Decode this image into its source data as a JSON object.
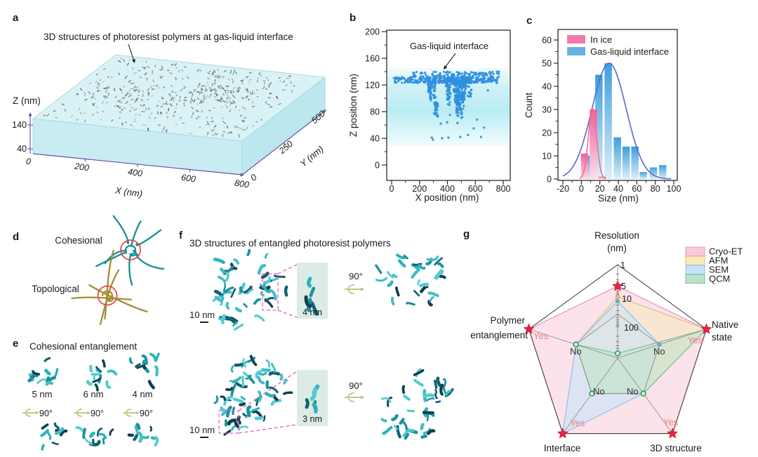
{
  "figure": {
    "panels": {
      "a": {
        "letter": "a",
        "title": "3D structures of photoresist polymers at gas-liquid interface",
        "z_axis": {
          "label": "Z (nm)",
          "ticks": [
            "140",
            "40"
          ]
        },
        "x_axis": {
          "label": "X (nm)",
          "ticks": [
            "0",
            "200",
            "400",
            "600",
            "800"
          ]
        },
        "y_axis": {
          "label": "Y (nm)",
          "ticks": [
            "0",
            "250",
            "500"
          ]
        }
      },
      "b": {
        "letter": "b",
        "annotation": "Gas-liquid interface",
        "x_axis": {
          "label": "X position (nm)"
        },
        "y_axis": {
          "label": "Z position (nm)"
        }
      },
      "c": {
        "letter": "c",
        "x_axis": {
          "label": "Size (nm)"
        },
        "y_axis": {
          "label": "Count"
        }
      },
      "d": {
        "letter": "d",
        "labels": [
          "Cohesional",
          "Topological"
        ]
      },
      "e": {
        "letter": "e",
        "title": "Cohesional entanglement",
        "sizes": [
          "5 nm",
          "6 nm",
          "4 nm"
        ],
        "rotation": "90°"
      },
      "f": {
        "letter": "f",
        "title": "3D structures of entangled photoresist polymers",
        "scale_bars": [
          "10 nm",
          "10 nm"
        ],
        "inset_sizes": [
          "4 nm",
          "3 nm"
        ],
        "rotation": "90°"
      },
      "g": {
        "letter": "g",
        "axis_labels": {
          "resolution_1": "Resolution",
          "resolution_2": "(nm)",
          "native_1": "Native",
          "native_2": "state",
          "structure": "3D structure",
          "interface": "Interface",
          "entangle_1": "Polymer",
          "entangle_2": "entanglement"
        }
      }
    }
  },
  "colors": {
    "scatter_blue": "#2f8fe0",
    "band_cyan": "#b9ecf3",
    "axis_purple": "#6a52a8",
    "slab_top": "#d9f2f6",
    "slab_front": "#c8ecf2",
    "slab_side": "#bde7ee",
    "slab_edge": "#9fd2dd",
    "speck_gray": "#6e6e66",
    "teal": "#1f9097",
    "olive": "#a38e33",
    "red_circle": "#e34b4b",
    "magenta_dash": "#ee59c3",
    "inset_bg": "#dcebe5",
    "rotation_arrow": "#aec877",
    "star_red": "#e8243e",
    "yes_label": "#ea8080",
    "no_label": "#333333"
  },
  "chart_data": [
    {
      "type": "scatter",
      "panel": "b",
      "annotation": "Gas-liquid interface",
      "xlabel": "X position (nm)",
      "ylabel": "Z position (nm)",
      "xlim": [
        0,
        800
      ],
      "ylim": [
        0,
        200
      ],
      "x_ticks": [
        "0",
        "200",
        "400",
        "600",
        "800"
      ],
      "y_ticks": [
        "200",
        "160",
        "120",
        "80",
        "40",
        "0"
      ],
      "interface_band_nm": [
        28,
        145
      ],
      "point_color": "#2f8fe0",
      "clusters": [
        {
          "x": [
            15,
            760
          ],
          "z": [
            123,
            132
          ],
          "n": 260
        },
        {
          "x": [
            150,
            770
          ],
          "z": [
            132,
            140
          ],
          "n": 110
        },
        {
          "x": [
            255,
            297
          ],
          "z": [
            93,
            127
          ],
          "n": 45,
          "taper": true
        },
        {
          "x": [
            298,
            318
          ],
          "z": [
            100,
            127
          ],
          "n": 20
        },
        {
          "x": [
            303,
            332
          ],
          "z": [
            72,
            96
          ],
          "n": 30
        },
        {
          "x": [
            385,
            432
          ],
          "z": [
            84,
            128
          ],
          "n": 55,
          "taper": true
        },
        {
          "x": [
            430,
            545
          ],
          "z": [
            68,
            131
          ],
          "n": 230,
          "taper": true
        },
        {
          "x": [
            545,
            575
          ],
          "z": [
            100,
            131
          ],
          "n": 22
        }
      ],
      "points": [
        [
          330,
          73
        ],
        [
          352,
          62
        ],
        [
          362,
          40
        ],
        [
          288,
          41
        ],
        [
          297,
          38
        ],
        [
          398,
          64
        ],
        [
          407,
          41
        ],
        [
          418,
          75
        ],
        [
          472,
          63
        ],
        [
          492,
          42
        ],
        [
          548,
          45
        ],
        [
          588,
          55
        ],
        [
          612,
          68
        ],
        [
          641,
          42
        ],
        [
          663,
          56
        ],
        [
          690,
          112
        ],
        [
          712,
          125
        ],
        [
          730,
          128
        ]
      ]
    },
    {
      "type": "bar",
      "panel": "c",
      "xlabel": "Size (nm)",
      "ylabel": "Count",
      "xlim": [
        -20,
        100
      ],
      "ylim": [
        0,
        60
      ],
      "x_ticks": [
        "-20",
        "0",
        "20",
        "40",
        "60",
        "80",
        "100"
      ],
      "y_ticks": [
        "0",
        "10",
        "20",
        "30",
        "40",
        "50",
        "60"
      ],
      "bar_width_nm": 8,
      "series": [
        {
          "name": "Gas-liquid interface",
          "color_top": "#3e9edd",
          "color_bottom": "#dbeffa",
          "bars": [
            {
              "x": 9,
              "count": 10
            },
            {
              "x": 19,
              "count": 45
            },
            {
              "x": 29,
              "count": 50
            },
            {
              "x": 39,
              "count": 18
            },
            {
              "x": 48.5,
              "count": 14
            },
            {
              "x": 58,
              "count": 14
            },
            {
              "x": 67,
              "count": 3
            },
            {
              "x": 78,
              "count": 5
            },
            {
              "x": 88,
              "count": 6
            }
          ]
        },
        {
          "name": "In ice",
          "color_top": "#f0609a",
          "color_bottom": "#fcdde9",
          "bars": [
            {
              "x": 3.5,
              "count": 11
            },
            {
              "x": 13,
              "count": 30
            },
            {
              "x": 22.5,
              "count": 1
            }
          ]
        }
      ],
      "legend": [
        {
          "label": "In ice",
          "color": "#f0609a"
        },
        {
          "label": "Gas-liquid interface",
          "color": "#4da3de"
        }
      ],
      "curves": [
        {
          "name": "Gas-liquid interface fit",
          "color": "#5968cf",
          "mu": 30,
          "sigma": 18.5,
          "amp": 50,
          "range": [
            -20,
            97
          ]
        },
        {
          "name": "In ice fit",
          "color": "#ef6f8e",
          "mu": 12,
          "sigma": 4.4,
          "amp": 31,
          "range": [
            -2,
            27
          ]
        }
      ]
    },
    {
      "type": "radar",
      "panel": "g",
      "axes": [
        "Resolution (nm)",
        "Native state",
        "3D structure",
        "Interface",
        "Polymer entanglement"
      ],
      "scale": {
        "type": "log",
        "ticks": [
          "1",
          "5",
          "10",
          "100"
        ]
      },
      "series": [
        {
          "name": "Cryo-ET",
          "fill": "#f8cbdb",
          "edge": "#e898b0",
          "marker": "star",
          "marker_color": "#e8243e",
          "values": [
            "5",
            "Yes",
            "Yes",
            "Yes",
            "Yes"
          ],
          "r": [
            0.77,
            1,
            1,
            1,
            1
          ]
        },
        {
          "name": "AFM",
          "fill": "#f8e9bd",
          "edge": "#dcc078",
          "marker": "circle",
          "marker_color": "#eec25c",
          "values": [
            "10",
            "Yes",
            "No",
            "No",
            "No"
          ],
          "r": [
            0.655,
            1,
            0.47,
            0.47,
            0.47
          ]
        },
        {
          "name": "SEM",
          "fill": "#c6e4fa",
          "edge": "#8fc0e8",
          "marker": "circle",
          "marker_color": "#57aee8",
          "values": [
            "10",
            "No",
            "No",
            "Yes",
            "No"
          ],
          "r": [
            0.61,
            0.47,
            0.47,
            1,
            0.47
          ]
        },
        {
          "name": "QCM",
          "fill": "#bde2cb",
          "edge": "#7bbf96",
          "marker": "ring",
          "marker_color": "#2f9e58",
          "values": [
            ">100",
            "Yes",
            "No",
            "No",
            "No"
          ],
          "r": [
            0.05,
            1,
            0.47,
            0.47,
            0.47
          ]
        }
      ],
      "value_labels": [
        {
          "axis": "Native state",
          "vertex": "Yes",
          "mid": "No"
        },
        {
          "axis": "3D structure",
          "vertex": "Yes",
          "mid": "No"
        },
        {
          "axis": "Interface",
          "vertex": "Yes",
          "mid": "No"
        },
        {
          "axis": "Polymer entanglement",
          "vertex": "Yes",
          "mid": "No"
        }
      ]
    }
  ]
}
